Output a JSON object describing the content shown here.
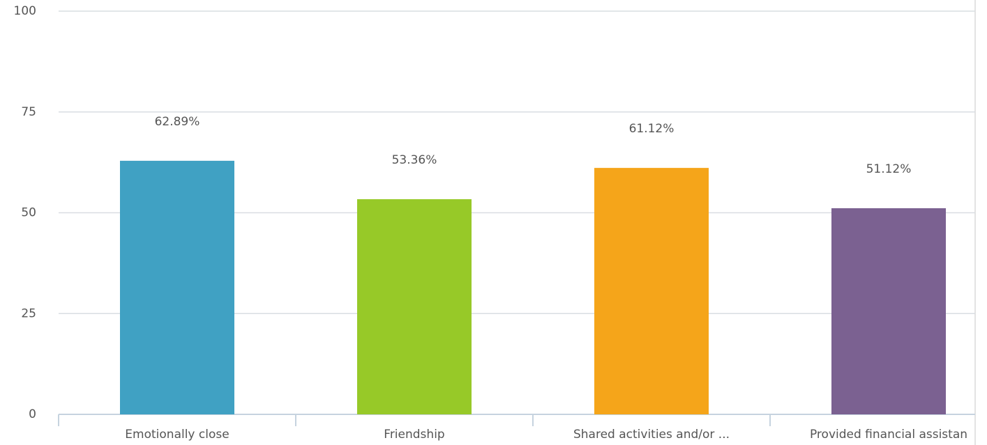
{
  "chart_data": {
    "type": "bar",
    "categories": [
      "Emotionally close",
      "Friendship",
      "Shared activities and/or ...",
      "Provided financial assistan"
    ],
    "values": [
      62.89,
      53.36,
      61.12,
      51.12
    ],
    "value_labels": [
      "62.89%",
      "53.36%",
      "61.12%",
      "51.12%"
    ],
    "colors": [
      "#40a1c3",
      "#97c928",
      "#f5a51a",
      "#7b6191"
    ],
    "ylim": [
      0,
      100
    ],
    "yticks": [
      0,
      25,
      50,
      75,
      100
    ],
    "grid": true
  }
}
